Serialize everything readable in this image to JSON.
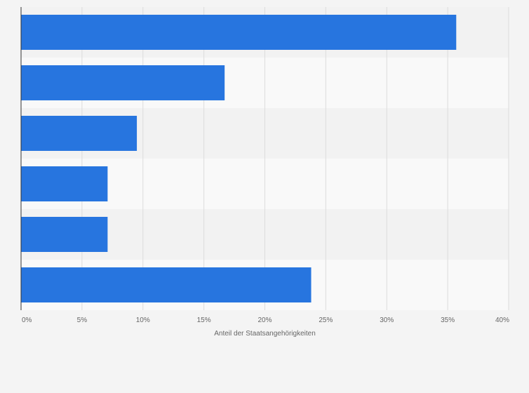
{
  "chart_data": {
    "type": "bar",
    "orientation": "horizontal",
    "categories": [
      "",
      "",
      "",
      "",
      "",
      ""
    ],
    "values": [
      35.7,
      16.7,
      9.5,
      7.1,
      7.1,
      23.8
    ],
    "xlim": [
      0,
      40
    ],
    "x_ticks": [
      "0%",
      "5%",
      "10%",
      "15%",
      "20%",
      "25%",
      "30%",
      "35%",
      "40%"
    ],
    "xlabel": "Anteil der Staatsangehörigkeiten",
    "grid": true,
    "bar_color": "#2775df"
  }
}
